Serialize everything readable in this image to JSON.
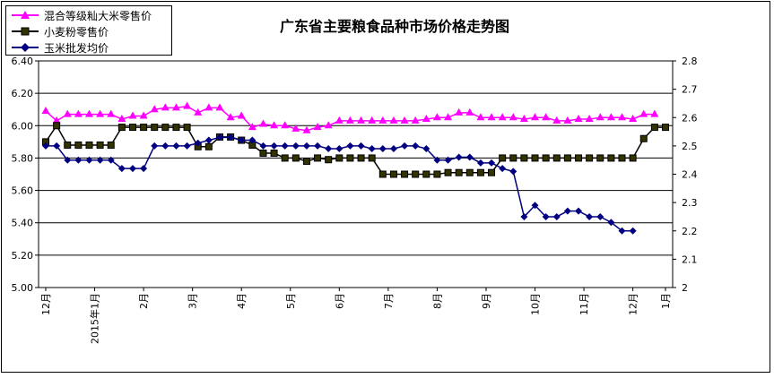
{
  "chart_data": {
    "type": "line",
    "title": "广东省主要粮食品种市场价格走势图",
    "x_ticks": [
      "12月",
      "2015年1月",
      "2月",
      "3月",
      "4月",
      "5月",
      "6月",
      "7月",
      "8月",
      "9月",
      "10月",
      "11月",
      "12月",
      "1月"
    ],
    "y_left_ticks": [
      "6.40",
      "6.20",
      "6.00",
      "5.80",
      "5.60",
      "5.40",
      "5.20",
      "5.00"
    ],
    "y_right_ticks": [
      "2.8",
      "2.7",
      "2.6",
      "2.5",
      "2.4",
      "2.3",
      "2.2",
      "2.1",
      "2"
    ],
    "ylim_left": [
      5.0,
      6.4
    ],
    "ylim_right": [
      2.0,
      2.8
    ],
    "grid": "horizontal",
    "legend_position": "top-left",
    "series": [
      {
        "name": "混合等级籼大米零售价",
        "axis": "left",
        "color": "#ff00ff",
        "marker": "triangle",
        "values": [
          6.09,
          6.03,
          6.07,
          6.07,
          6.07,
          6.07,
          6.07,
          6.04,
          6.06,
          6.06,
          6.1,
          6.11,
          6.11,
          6.12,
          6.08,
          6.11,
          6.11,
          6.05,
          6.06,
          5.99,
          6.01,
          6.0,
          6.0,
          5.98,
          5.97,
          5.99,
          6.0,
          6.03,
          6.03,
          6.03,
          6.03,
          6.03,
          6.03,
          6.03,
          6.03,
          6.04,
          6.05,
          6.05,
          6.08,
          6.08,
          6.05,
          6.05,
          6.05,
          6.05,
          6.04,
          6.05,
          6.05,
          6.03,
          6.03,
          6.04,
          6.04,
          6.05,
          6.05,
          6.05,
          6.04,
          6.07,
          6.07
        ]
      },
      {
        "name": "小麦粉零售价",
        "axis": "left",
        "color": "#333300",
        "marker": "square",
        "values": [
          5.9,
          6.0,
          5.88,
          5.88,
          5.88,
          5.88,
          5.88,
          5.99,
          5.99,
          5.99,
          5.99,
          5.99,
          5.99,
          5.99,
          5.87,
          5.87,
          5.93,
          5.93,
          5.91,
          5.88,
          5.83,
          5.83,
          5.8,
          5.8,
          5.78,
          5.8,
          5.79,
          5.8,
          5.8,
          5.8,
          5.8,
          5.7,
          5.7,
          5.7,
          5.7,
          5.7,
          5.7,
          5.71,
          5.71,
          5.71,
          5.71,
          5.71,
          5.8,
          5.8,
          5.8,
          5.8,
          5.8,
          5.8,
          5.8,
          5.8,
          5.8,
          5.8,
          5.8,
          5.8,
          5.8,
          5.92,
          5.99,
          5.99
        ]
      },
      {
        "name": "玉米批发均价",
        "axis": "right",
        "color": "#000080",
        "marker": "diamond",
        "values": [
          2.5,
          2.5,
          2.45,
          2.45,
          2.45,
          2.45,
          2.45,
          2.42,
          2.42,
          2.42,
          2.5,
          2.5,
          2.5,
          2.5,
          2.51,
          2.52,
          2.53,
          2.53,
          2.52,
          2.52,
          2.5,
          2.5,
          2.5,
          2.5,
          2.5,
          2.5,
          2.49,
          2.49,
          2.5,
          2.5,
          2.49,
          2.49,
          2.49,
          2.5,
          2.5,
          2.49,
          2.45,
          2.45,
          2.46,
          2.46,
          2.44,
          2.44,
          2.42,
          2.41,
          2.25,
          2.29,
          2.25,
          2.25,
          2.27,
          2.27,
          2.25,
          2.25,
          2.23,
          2.2,
          2.2
        ]
      }
    ]
  }
}
